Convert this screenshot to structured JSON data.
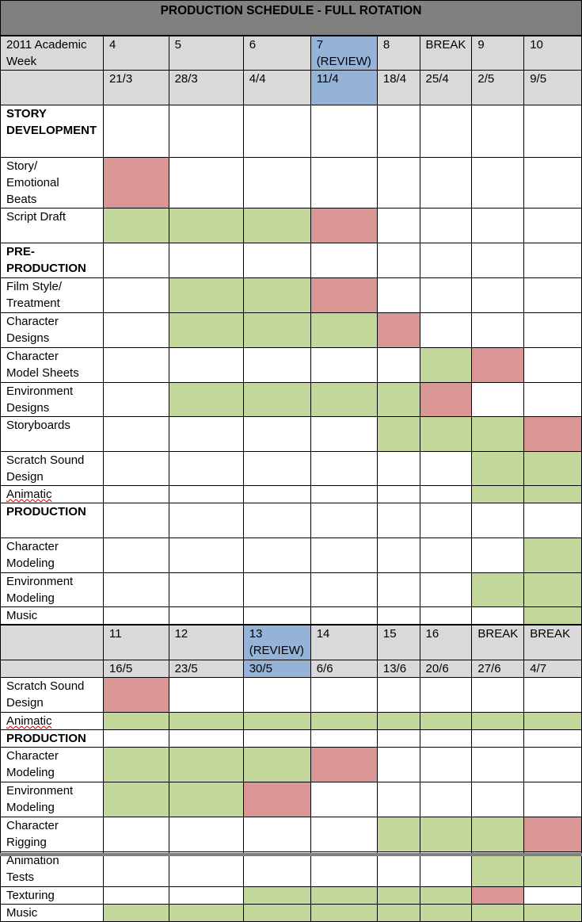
{
  "title": "PRODUCTION SCHEDULE - FULL ROTATION",
  "colors": {
    "header_gray": "#d9d9d9",
    "title_gray": "#808080",
    "review_blue": "#95b3d7",
    "milestone_red": "#da9694",
    "work_green": "#c4d79b"
  },
  "legend_codes": {
    "g": "work period (green)",
    "r": "milestone (red)"
  },
  "section1": {
    "header_label": "2011 Academic Week",
    "weeks": [
      "4",
      "5",
      "6",
      "7\n(REVIEW)",
      "8",
      "BREAK",
      "9",
      "10"
    ],
    "dates": [
      "21/3",
      "28/3",
      "4/4",
      "11/4",
      "18/4",
      "25/4",
      "2/5",
      "9/5"
    ],
    "review_col": 3,
    "rows": [
      {
        "label": "STORY DEVELOPMENT",
        "category": true,
        "cells": "--------"
      },
      {
        "label": "Story/\nEmotional\nBeats",
        "cells": "r-------"
      },
      {
        "label": "Script Draft",
        "cells": "gggr----"
      },
      {
        "label": "PRE-\nPRODUCTION",
        "category": true,
        "cells": "--------"
      },
      {
        "label": "Film Style/\nTreatment",
        "cells": "-ggr----"
      },
      {
        "label": "Character\nDesigns",
        "cells": "-gggr---"
      },
      {
        "label": "Character\nModel Sheets",
        "cells": "-----gr-"
      },
      {
        "label": "Environment\nDesigns",
        "cells": "-ggggr--"
      },
      {
        "label": "Storyboards",
        "cells": "----gggr"
      },
      {
        "label": "Scratch Sound\nDesign",
        "cells": "------gg"
      },
      {
        "label": "Animatic",
        "spell": true,
        "cells": "------gg"
      },
      {
        "label": "PRODUCTION",
        "category": true,
        "cells": "--------"
      },
      {
        "label": "Character\nModeling",
        "cells": "-------g"
      },
      {
        "label": "Environment\nModeling",
        "cells": "------gg"
      },
      {
        "label": "Music",
        "cells": "-------g"
      },
      {
        "label": "",
        "cells": "--------"
      }
    ]
  },
  "section2": {
    "weeks": [
      "11",
      "12",
      "13\n(REVIEW)",
      "14",
      "15",
      "16",
      "BREAK",
      "BREAK"
    ],
    "dates": [
      "16/5",
      "23/5",
      "30/5",
      "6/6",
      "13/6",
      "20/6",
      "27/6",
      "4/7"
    ],
    "review_col": 2,
    "rows": [
      {
        "label": "Scratch Sound\nDesign",
        "cells": "r-------"
      },
      {
        "label": "Animatic",
        "spell": true,
        "cells": "gggggggg"
      },
      {
        "label": "PRODUCTION",
        "category": true,
        "cells": "--------"
      },
      {
        "label": "Character\nModeling",
        "cells": "gggr----"
      },
      {
        "label": "Environment\nModeling",
        "cells": "ggr-----"
      },
      {
        "label": "Character\nRigging",
        "cells": "----gggr"
      },
      {
        "label": "Animation\nTests",
        "cells": "------gg"
      },
      {
        "label": "Texturing",
        "cells": "--ggggr-"
      },
      {
        "label": "Music",
        "cells": "gggggggg"
      }
    ]
  }
}
